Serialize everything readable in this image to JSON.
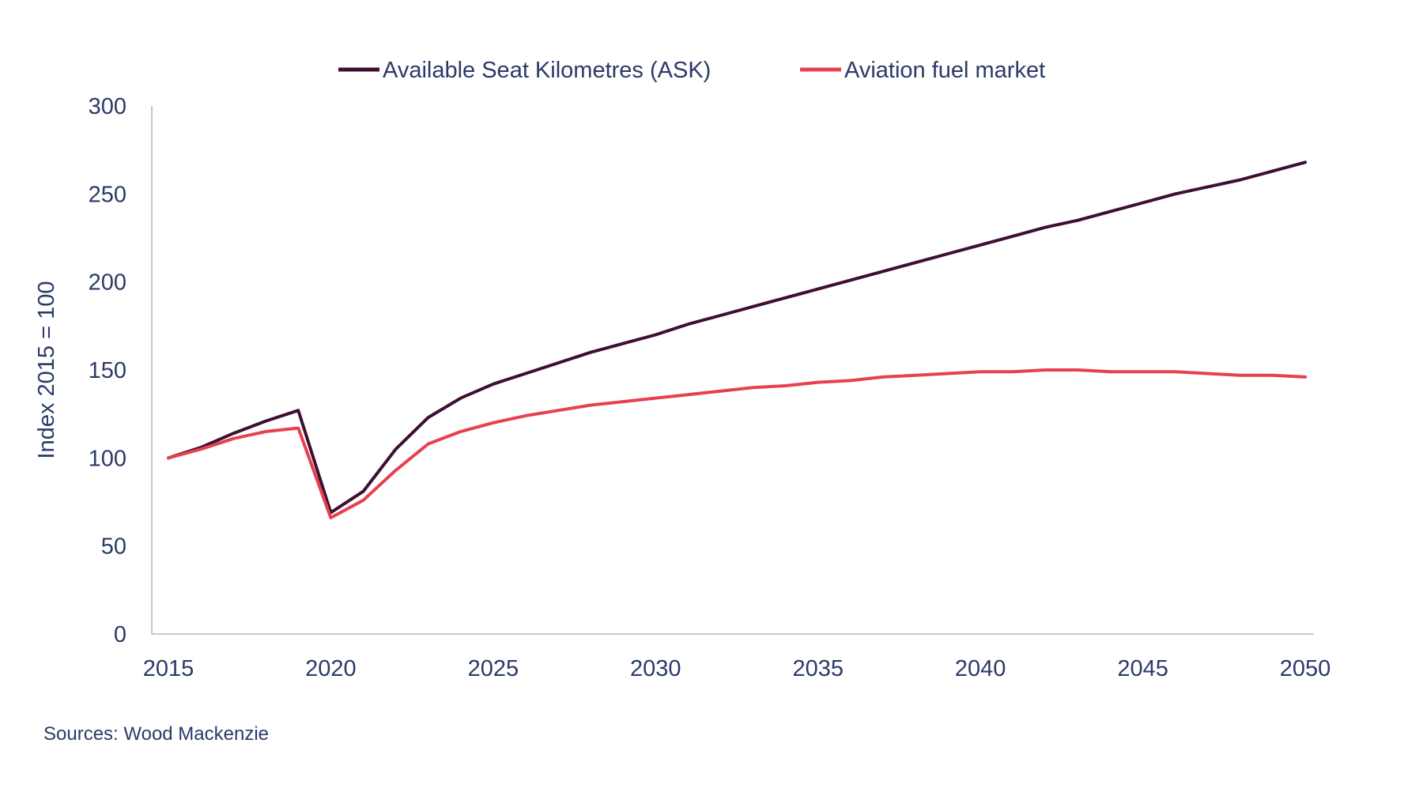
{
  "chart_data": {
    "type": "line",
    "x": [
      2015,
      2016,
      2017,
      2018,
      2019,
      2020,
      2021,
      2022,
      2023,
      2024,
      2025,
      2026,
      2027,
      2028,
      2029,
      2030,
      2031,
      2032,
      2033,
      2034,
      2035,
      2036,
      2037,
      2038,
      2039,
      2040,
      2041,
      2042,
      2043,
      2044,
      2045,
      2046,
      2047,
      2048,
      2049,
      2050
    ],
    "series": [
      {
        "name": "Available Seat Kilometres (ASK)",
        "color": "#3d0f33",
        "values": [
          100,
          106,
          114,
          121,
          127,
          69,
          81,
          105,
          123,
          134,
          142,
          148,
          154,
          160,
          165,
          170,
          176,
          181,
          186,
          191,
          196,
          201,
          206,
          211,
          216,
          221,
          226,
          231,
          235,
          240,
          245,
          250,
          254,
          258,
          263,
          268
        ]
      },
      {
        "name": "Aviation fuel market",
        "color": "#e8404f",
        "values": [
          100,
          105,
          111,
          115,
          117,
          66,
          76,
          93,
          108,
          115,
          120,
          124,
          127,
          130,
          132,
          134,
          136,
          138,
          140,
          141,
          143,
          144,
          146,
          147,
          148,
          149,
          149,
          150,
          150,
          149,
          149,
          149,
          148,
          147,
          147,
          146
        ]
      }
    ],
    "ylabel": "Index 2015 = 100",
    "ylim": [
      0,
      300
    ],
    "yticks": [
      0,
      50,
      100,
      150,
      200,
      250,
      300
    ],
    "xticks": [
      2015,
      2020,
      2025,
      2030,
      2035,
      2040,
      2045,
      2050
    ],
    "xlim": [
      2015,
      2050
    ],
    "legend_position": "top",
    "grid": false
  },
  "source_note": "Sources: Wood Mackenzie"
}
